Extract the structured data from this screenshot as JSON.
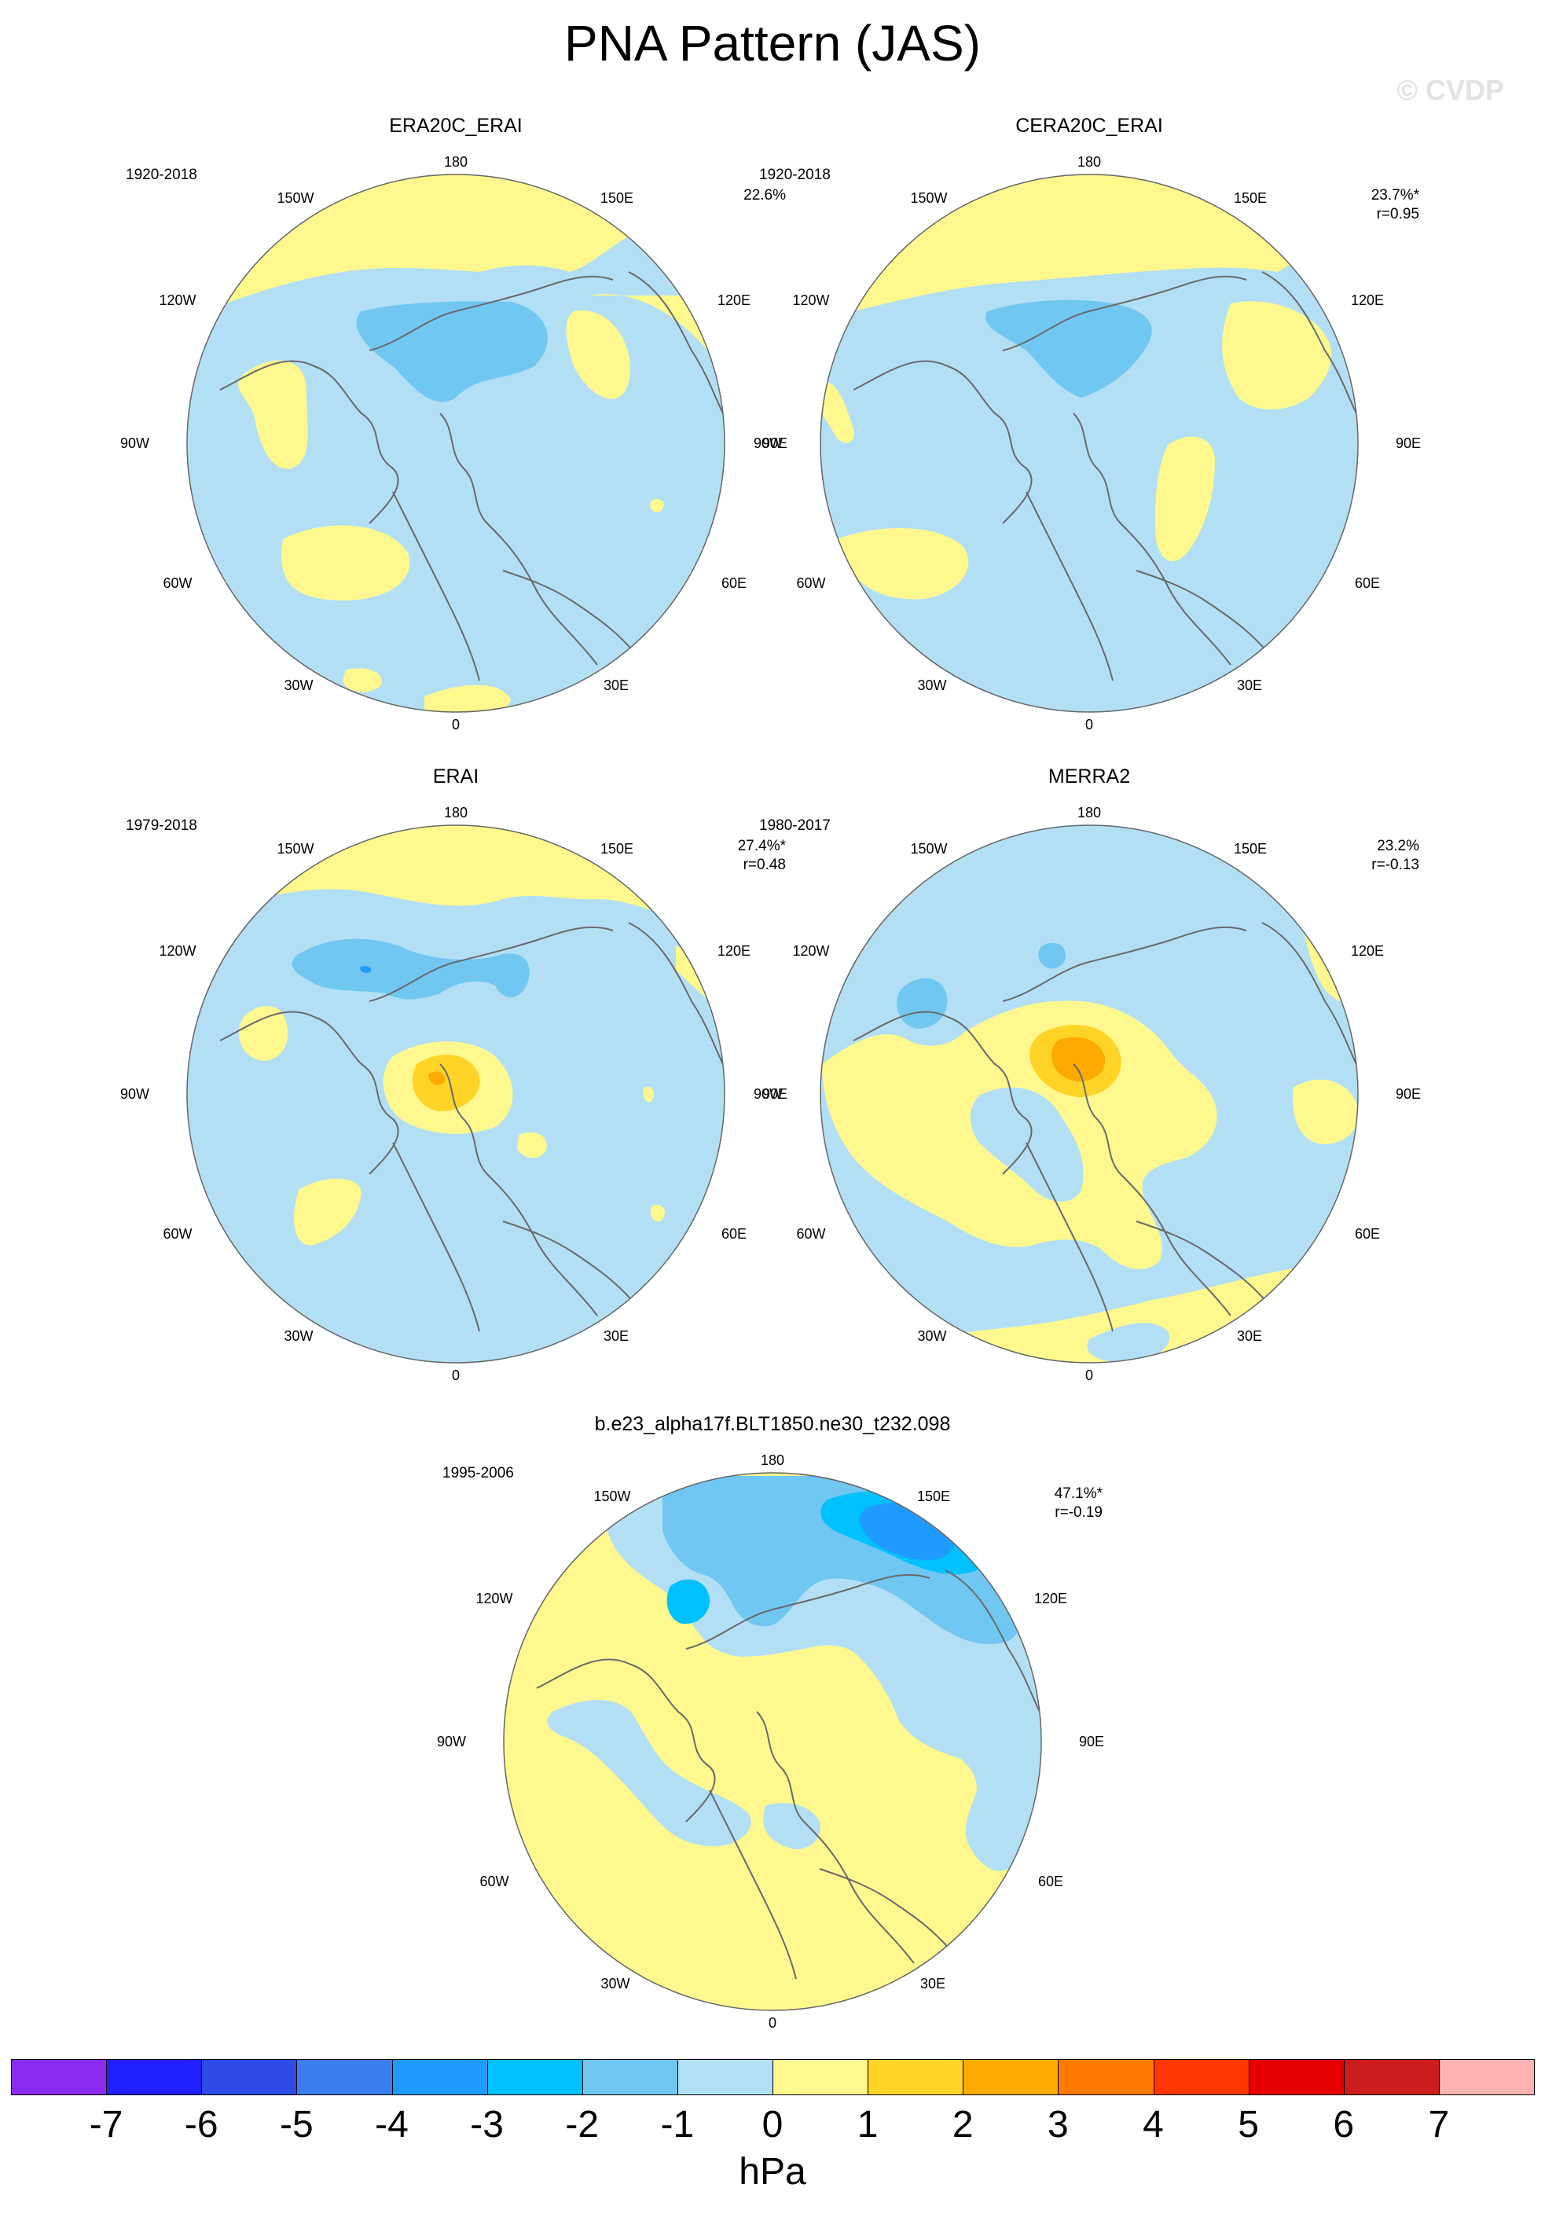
{
  "title": "PNA Pattern (JAS)",
  "watermark": "© CVDP",
  "lon_labels": [
    "180",
    "150E",
    "120E",
    "90E",
    "60E",
    "30E",
    "0",
    "30W",
    "60W",
    "90W",
    "120W",
    "150W"
  ],
  "panels": [
    {
      "name": "ERA20C_ERAI",
      "period": "1920-2018",
      "pct": "22.6%",
      "r": ""
    },
    {
      "name": "CERA20C_ERAI",
      "period": "1920-2018",
      "pct": "23.7%*",
      "r": "r=0.95"
    },
    {
      "name": "ERAI",
      "period": "1979-2018",
      "pct": "27.4%*",
      "r": "r=0.48"
    },
    {
      "name": "MERRA2",
      "period": "1980-2017",
      "pct": "23.2%",
      "r": "r=-0.13"
    },
    {
      "name": "b.e23_alpha17f.BLT1850.ne30_t232.098",
      "period": "1995-2006",
      "pct": "47.1%*",
      "r": "r=-0.19"
    }
  ],
  "colorbar": {
    "units": "hPa",
    "ticks": [
      "-7",
      "-6",
      "-5",
      "-4",
      "-3",
      "-2",
      "-1",
      "0",
      "1",
      "2",
      "3",
      "4",
      "5",
      "6",
      "7"
    ],
    "colors": [
      "#8c2bf0",
      "#1f1fff",
      "#2d4be6",
      "#3b7ded",
      "#1f9bff",
      "#00c1ff",
      "#70c7f2",
      "#b3dff5",
      "#fff88f",
      "#ffd426",
      "#ffaa00",
      "#ff7a00",
      "#ff3600",
      "#e60000",
      "#cc1c1c",
      "#ffb3b3"
    ]
  },
  "colors": {
    "neg1": "#b3dff5",
    "neg2": "#70c7f2",
    "neg3": "#1f9bff",
    "neg4": "#00c1ff",
    "pos1": "#fff88f",
    "pos2": "#ffd426",
    "pos3": "#ffaa00",
    "coast": "#6a6a6a"
  }
}
